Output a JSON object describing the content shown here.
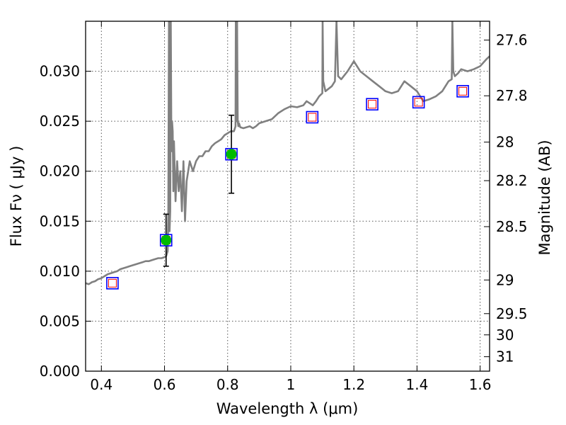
{
  "chart_data": {
    "type": "line",
    "xlabel": "Wavelength  λ (μm)",
    "ylabel": "Flux  Fν  ( μJy )",
    "ylabel_right": "Magnitude (AB)",
    "xlim": [
      0.35,
      1.63
    ],
    "ylim": [
      0.0,
      0.035
    ],
    "grid": true,
    "x_ticks": [
      0.4,
      0.6,
      0.8,
      1.0,
      1.2,
      1.4,
      1.6
    ],
    "x_tick_labels": [
      "0.4",
      "0.6",
      "0.8",
      "1",
      "1.2",
      "1.4",
      "1.6"
    ],
    "y_ticks": [
      0.0,
      0.005,
      0.01,
      0.015,
      0.02,
      0.025,
      0.03
    ],
    "y_tick_labels": [
      "0.000",
      "0.005",
      "0.010",
      "0.015",
      "0.020",
      "0.025",
      "0.030"
    ],
    "mag_ticks": [
      27.6,
      27.8,
      28,
      28.2,
      28.5,
      29,
      29.5,
      30,
      31
    ],
    "mag_tick_labels": [
      "27.6",
      "27.8",
      "28",
      "28.2",
      "28.5",
      "29",
      "29.5",
      "30",
      "31"
    ],
    "colors": {
      "spectrum": "#808080",
      "observed": "#00bb00",
      "model_box": "#0000ff",
      "model_inner": "#ff0000",
      "errorbar": "#000000"
    },
    "spectrum": {
      "x": [
        0.35,
        0.36,
        0.37,
        0.38,
        0.39,
        0.4,
        0.41,
        0.42,
        0.43,
        0.44,
        0.45,
        0.46,
        0.47,
        0.48,
        0.49,
        0.5,
        0.51,
        0.52,
        0.53,
        0.54,
        0.55,
        0.56,
        0.57,
        0.58,
        0.59,
        0.6,
        0.605,
        0.61,
        0.612,
        0.614,
        0.616,
        0.618,
        0.62,
        0.622,
        0.624,
        0.626,
        0.628,
        0.63,
        0.635,
        0.64,
        0.645,
        0.65,
        0.655,
        0.66,
        0.665,
        0.67,
        0.68,
        0.69,
        0.7,
        0.71,
        0.72,
        0.73,
        0.74,
        0.75,
        0.76,
        0.77,
        0.78,
        0.79,
        0.8,
        0.81,
        0.82,
        0.825,
        0.826,
        0.828,
        0.83,
        0.832,
        0.834,
        0.836,
        0.84,
        0.85,
        0.86,
        0.87,
        0.88,
        0.89,
        0.9,
        0.92,
        0.94,
        0.96,
        0.98,
        1.0,
        1.02,
        1.04,
        1.05,
        1.06,
        1.07,
        1.08,
        1.09,
        1.1,
        1.101,
        1.103,
        1.11,
        1.13,
        1.14,
        1.145,
        1.15,
        1.16,
        1.18,
        1.2,
        1.22,
        1.24,
        1.26,
        1.28,
        1.3,
        1.32,
        1.34,
        1.36,
        1.38,
        1.4,
        1.42,
        1.44,
        1.46,
        1.48,
        1.5,
        1.51,
        1.512,
        1.515,
        1.52,
        1.53,
        1.54,
        1.56,
        1.58,
        1.6,
        1.62,
        1.63
      ],
      "y": [
        0.0088,
        0.0087,
        0.0089,
        0.009,
        0.0092,
        0.0093,
        0.0095,
        0.0097,
        0.0098,
        0.0099,
        0.01,
        0.0102,
        0.0103,
        0.0104,
        0.0105,
        0.0106,
        0.0107,
        0.0108,
        0.0109,
        0.011,
        0.011,
        0.0111,
        0.0112,
        0.0113,
        0.0113,
        0.0114,
        0.0115,
        0.012,
        0.016,
        0.035,
        0.014,
        0.016,
        0.035,
        0.022,
        0.025,
        0.024,
        0.018,
        0.023,
        0.017,
        0.021,
        0.018,
        0.02,
        0.016,
        0.021,
        0.015,
        0.019,
        0.021,
        0.02,
        0.021,
        0.0215,
        0.0215,
        0.022,
        0.022,
        0.0225,
        0.0228,
        0.023,
        0.0232,
        0.0236,
        0.0238,
        0.024,
        0.024,
        0.0245,
        0.035,
        0.025,
        0.035,
        0.025,
        0.0245,
        0.0248,
        0.0244,
        0.0243,
        0.0244,
        0.0245,
        0.0243,
        0.0245,
        0.0248,
        0.025,
        0.0252,
        0.0258,
        0.0262,
        0.0265,
        0.0264,
        0.0266,
        0.027,
        0.0268,
        0.0266,
        0.027,
        0.0275,
        0.0278,
        0.035,
        0.029,
        0.028,
        0.0285,
        0.029,
        0.035,
        0.0295,
        0.0292,
        0.03,
        0.031,
        0.03,
        0.0295,
        0.029,
        0.0285,
        0.028,
        0.0278,
        0.028,
        0.029,
        0.0285,
        0.028,
        0.027,
        0.0272,
        0.0275,
        0.028,
        0.029,
        0.0292,
        0.035,
        0.03,
        0.0295,
        0.0298,
        0.0302,
        0.03,
        0.0302,
        0.0305,
        0.0312,
        0.0315
      ]
    },
    "observed": [
      {
        "x": 0.605,
        "y": 0.0131,
        "err": 0.0026
      },
      {
        "x": 0.812,
        "y": 0.0217,
        "err": 0.0039
      }
    ],
    "model_boxes": [
      {
        "x": 0.435,
        "y": 0.0088
      },
      {
        "x": 0.605,
        "y": 0.0131
      },
      {
        "x": 0.812,
        "y": 0.0217
      },
      {
        "x": 1.068,
        "y": 0.0254
      },
      {
        "x": 1.258,
        "y": 0.0267
      },
      {
        "x": 1.405,
        "y": 0.0269
      },
      {
        "x": 1.545,
        "y": 0.028
      }
    ]
  }
}
